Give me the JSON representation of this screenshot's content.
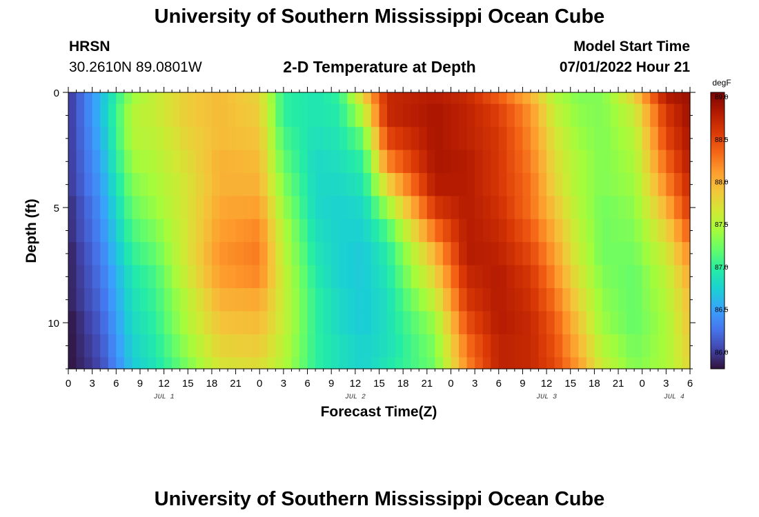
{
  "page": {
    "title": "University of Southern Mississippi Ocean Cube",
    "station": "HRSN",
    "coords": "30.2610N  89.0801W",
    "subtitle": "2-D Temperature at Depth",
    "start_label": "Model Start Time",
    "start_value": "07/01/2022 Hour 21",
    "footer_title": "University of Southern Mississippi Ocean Cube"
  },
  "chart_data": {
    "type": "heatmap",
    "title": "2-D Temperature at Depth",
    "xlabel": "Forecast Time(Z)",
    "ylabel": "Depth (ft)",
    "x_hours_range": [
      0,
      78
    ],
    "y_range": [
      0,
      12
    ],
    "y_inverted": true,
    "x_ticks": [
      {
        "h": 0,
        "label": "0"
      },
      {
        "h": 3,
        "label": "3"
      },
      {
        "h": 6,
        "label": "6"
      },
      {
        "h": 9,
        "label": "9"
      },
      {
        "h": 12,
        "label": "12"
      },
      {
        "h": 15,
        "label": "15"
      },
      {
        "h": 18,
        "label": "18"
      },
      {
        "h": 21,
        "label": "21"
      },
      {
        "h": 24,
        "label": "0"
      },
      {
        "h": 27,
        "label": "3"
      },
      {
        "h": 30,
        "label": "6"
      },
      {
        "h": 33,
        "label": "9"
      },
      {
        "h": 36,
        "label": "12"
      },
      {
        "h": 39,
        "label": "15"
      },
      {
        "h": 42,
        "label": "18"
      },
      {
        "h": 45,
        "label": "21"
      },
      {
        "h": 48,
        "label": "0"
      },
      {
        "h": 51,
        "label": "3"
      },
      {
        "h": 54,
        "label": "6"
      },
      {
        "h": 57,
        "label": "9"
      },
      {
        "h": 60,
        "label": "12"
      },
      {
        "h": 63,
        "label": "15"
      },
      {
        "h": 66,
        "label": "18"
      },
      {
        "h": 69,
        "label": "21"
      },
      {
        "h": 72,
        "label": "0"
      },
      {
        "h": 75,
        "label": "3"
      },
      {
        "h": 78,
        "label": "6"
      }
    ],
    "date_labels": [
      {
        "h": 12,
        "label": "JUL 1"
      },
      {
        "h": 36,
        "label": "JUL 2"
      },
      {
        "h": 60,
        "label": "JUL 3"
      },
      {
        "h": 76,
        "label": "JUL 4"
      }
    ],
    "y_ticks": [
      0,
      5,
      10
    ],
    "colorbar": {
      "unit": "degF",
      "min": 85.8,
      "max": 89.05,
      "ticks": [
        "89.0",
        "88.5",
        "88.0",
        "87.5",
        "87.0",
        "86.5",
        "86.0"
      ],
      "colors": [
        "#30123b",
        "#4145ab",
        "#4675ed",
        "#39a2fc",
        "#1bcfd4",
        "#24eca6",
        "#61fc6c",
        "#a4fc3b",
        "#d1e834",
        "#f3c63a",
        "#fe9b2d",
        "#f36315",
        "#d93806",
        "#b11901",
        "#7a0403"
      ]
    },
    "depths_ft": [
      0,
      1,
      2,
      3,
      4,
      5,
      6,
      7,
      8,
      9,
      10,
      11,
      12
    ],
    "keyframes_hours": [
      0,
      4,
      8,
      11,
      15,
      19,
      24,
      27,
      31,
      34,
      37,
      40,
      46,
      50,
      54,
      58,
      61,
      64,
      67,
      71,
      75,
      78
    ],
    "keyframe_temps": [
      [
        85.95,
        86.6,
        87.4,
        87.6,
        87.85,
        87.95,
        87.8,
        87.0,
        86.9,
        87.0,
        87.8,
        88.7,
        88.8,
        88.7,
        88.4,
        88.0,
        87.5,
        87.3,
        87.3,
        87.8,
        88.8,
        88.9
      ],
      [
        85.95,
        86.6,
        87.5,
        87.6,
        87.85,
        87.95,
        87.85,
        87.0,
        86.9,
        86.95,
        87.5,
        88.7,
        88.85,
        88.75,
        88.55,
        88.15,
        87.6,
        87.35,
        87.3,
        87.6,
        88.6,
        88.9
      ],
      [
        85.95,
        86.55,
        87.5,
        87.55,
        87.8,
        87.95,
        87.9,
        87.1,
        86.85,
        86.9,
        87.2,
        88.5,
        88.85,
        88.75,
        88.6,
        88.2,
        87.7,
        87.4,
        87.3,
        87.5,
        88.5,
        88.85
      ],
      [
        85.95,
        86.5,
        87.4,
        87.5,
        87.75,
        88.0,
        87.95,
        87.2,
        86.8,
        86.85,
        87.0,
        88.2,
        88.85,
        88.8,
        88.6,
        88.25,
        87.75,
        87.45,
        87.3,
        87.45,
        88.35,
        88.8
      ],
      [
        85.95,
        86.45,
        87.3,
        87.45,
        87.7,
        88.0,
        88.0,
        87.3,
        86.8,
        86.8,
        86.9,
        87.8,
        88.8,
        88.8,
        88.6,
        88.3,
        87.8,
        87.45,
        87.3,
        87.4,
        88.2,
        88.7
      ],
      [
        85.9,
        86.4,
        87.2,
        87.4,
        87.7,
        88.05,
        88.1,
        87.4,
        86.8,
        86.75,
        86.8,
        87.4,
        88.6,
        88.8,
        88.65,
        88.3,
        87.9,
        87.5,
        87.25,
        87.35,
        88.0,
        88.6
      ],
      [
        85.9,
        86.35,
        87.1,
        87.3,
        87.7,
        88.1,
        88.2,
        87.5,
        86.85,
        86.75,
        86.75,
        87.1,
        88.3,
        88.8,
        88.7,
        88.4,
        88.0,
        87.55,
        87.25,
        87.3,
        87.8,
        88.4
      ],
      [
        85.85,
        86.3,
        87.0,
        87.2,
        87.7,
        88.15,
        88.25,
        87.55,
        86.9,
        86.75,
        86.7,
        86.95,
        88.0,
        88.8,
        88.75,
        88.5,
        88.1,
        87.6,
        87.25,
        87.25,
        87.65,
        88.2
      ],
      [
        85.85,
        86.25,
        86.9,
        87.1,
        87.65,
        88.1,
        88.2,
        87.6,
        86.95,
        86.75,
        86.7,
        86.9,
        87.8,
        88.7,
        88.8,
        88.6,
        88.2,
        87.7,
        87.3,
        87.2,
        87.55,
        88.05
      ],
      [
        85.85,
        86.2,
        86.85,
        87.05,
        87.55,
        88.0,
        88.05,
        87.6,
        87.0,
        86.8,
        86.7,
        86.85,
        87.6,
        88.6,
        88.8,
        88.65,
        88.3,
        87.8,
        87.35,
        87.2,
        87.5,
        87.95
      ],
      [
        85.8,
        86.15,
        86.8,
        87.0,
        87.5,
        87.9,
        87.95,
        87.6,
        87.0,
        86.8,
        86.7,
        86.85,
        87.4,
        88.45,
        88.8,
        88.7,
        88.4,
        87.9,
        87.4,
        87.2,
        87.45,
        87.9
      ],
      [
        85.8,
        86.1,
        86.75,
        86.95,
        87.4,
        87.8,
        87.85,
        87.55,
        87.0,
        86.85,
        86.75,
        86.85,
        87.3,
        88.3,
        88.75,
        88.7,
        88.45,
        88.0,
        87.5,
        87.25,
        87.45,
        87.85
      ],
      [
        85.8,
        86.05,
        86.7,
        86.9,
        87.3,
        87.7,
        87.75,
        87.5,
        87.0,
        86.85,
        86.75,
        86.9,
        87.25,
        88.2,
        88.75,
        88.7,
        88.5,
        88.1,
        87.6,
        87.3,
        87.45,
        87.8
      ]
    ]
  }
}
